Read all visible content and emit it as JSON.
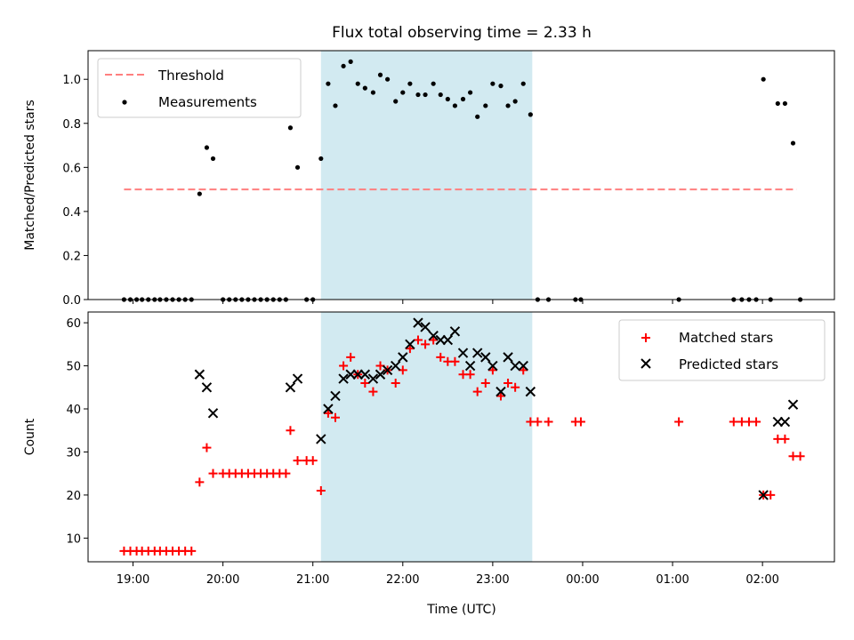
{
  "chart_data": {
    "title": "Flux total observing time = 2.33 h",
    "xlabel": "Time (UTC)",
    "x_unit": "hours (24.0 = 00:00 next day)",
    "xlim": [
      18.5,
      26.8
    ],
    "xticks": [
      {
        "value": 19,
        "label": "19:00"
      },
      {
        "value": 20,
        "label": "20:00"
      },
      {
        "value": 21,
        "label": "21:00"
      },
      {
        "value": 22,
        "label": "22:00"
      },
      {
        "value": 23,
        "label": "23:00"
      },
      {
        "value": 24,
        "label": "00:00"
      },
      {
        "value": 25,
        "label": "01:00"
      },
      {
        "value": 26,
        "label": "02:00"
      }
    ],
    "span": {
      "x0": 21.09,
      "x1": 23.44,
      "color": "#add8e6"
    },
    "colors": {
      "threshold": "#ff7f7f",
      "measurements": "#000000",
      "matched": "#ff0000",
      "predicted": "#000000"
    },
    "panels": [
      {
        "type": "scatter",
        "ylabel": "Matched/Predicted stars",
        "ylim": [
          0,
          1.13
        ],
        "yticks": [
          0.0,
          0.2,
          0.4,
          0.6,
          0.8,
          1.0
        ],
        "ytick_labels": [
          "0.0",
          "0.2",
          "0.4",
          "0.6",
          "0.8",
          "1.0"
        ],
        "legend": {
          "position": "upper-left",
          "threshold_label": "Threshold",
          "measurements_label": "Measurements"
        },
        "threshold": {
          "value": 0.5,
          "x0": 18.9,
          "x1": 26.38
        },
        "measurements": [
          [
            18.9,
            0
          ],
          [
            18.97,
            0
          ],
          [
            19.04,
            0
          ],
          [
            19.1,
            0
          ],
          [
            19.17,
            0
          ],
          [
            19.24,
            0
          ],
          [
            19.3,
            0
          ],
          [
            19.37,
            0
          ],
          [
            19.44,
            0
          ],
          [
            19.51,
            0
          ],
          [
            19.58,
            0
          ],
          [
            19.65,
            0
          ],
          [
            19.74,
            0.48
          ],
          [
            19.82,
            0.69
          ],
          [
            19.89,
            0.64
          ],
          [
            20.0,
            0
          ],
          [
            20.07,
            0
          ],
          [
            20.14,
            0
          ],
          [
            20.21,
            0
          ],
          [
            20.28,
            0
          ],
          [
            20.35,
            0
          ],
          [
            20.42,
            0
          ],
          [
            20.49,
            0
          ],
          [
            20.56,
            0
          ],
          [
            20.63,
            0
          ],
          [
            20.7,
            0
          ],
          [
            20.75,
            0.78
          ],
          [
            20.83,
            0.6
          ],
          [
            20.93,
            0
          ],
          [
            21.0,
            0
          ],
          [
            21.09,
            0.64
          ],
          [
            21.17,
            0.98
          ],
          [
            21.25,
            0.88
          ],
          [
            21.34,
            1.06
          ],
          [
            21.42,
            1.08
          ],
          [
            21.5,
            0.98
          ],
          [
            21.58,
            0.96
          ],
          [
            21.67,
            0.94
          ],
          [
            21.75,
            1.02
          ],
          [
            21.83,
            1.0
          ],
          [
            21.92,
            0.9
          ],
          [
            22.0,
            0.94
          ],
          [
            22.08,
            0.98
          ],
          [
            22.17,
            0.93
          ],
          [
            22.25,
            0.93
          ],
          [
            22.34,
            0.98
          ],
          [
            22.42,
            0.93
          ],
          [
            22.5,
            0.91
          ],
          [
            22.58,
            0.88
          ],
          [
            22.67,
            0.91
          ],
          [
            22.75,
            0.94
          ],
          [
            22.83,
            0.83
          ],
          [
            22.92,
            0.88
          ],
          [
            23.0,
            0.98
          ],
          [
            23.09,
            0.97
          ],
          [
            23.17,
            0.88
          ],
          [
            23.25,
            0.9
          ],
          [
            23.34,
            0.98
          ],
          [
            23.42,
            0.84
          ],
          [
            23.5,
            0
          ],
          [
            23.62,
            0
          ],
          [
            23.92,
            0
          ],
          [
            23.98,
            0
          ],
          [
            25.07,
            0
          ],
          [
            25.68,
            0
          ],
          [
            25.77,
            0
          ],
          [
            25.85,
            0
          ],
          [
            25.93,
            0
          ],
          [
            26.01,
            1.0
          ],
          [
            26.09,
            0
          ],
          [
            26.17,
            0.89
          ],
          [
            26.25,
            0.89
          ],
          [
            26.34,
            0.71
          ],
          [
            26.42,
            0
          ]
        ]
      },
      {
        "type": "scatter",
        "ylabel": "Count",
        "ylim": [
          4.5,
          62.5
        ],
        "yticks": [
          10,
          20,
          30,
          40,
          50,
          60
        ],
        "ytick_labels": [
          "10",
          "20",
          "30",
          "40",
          "50",
          "60"
        ],
        "legend": {
          "position": "upper-right",
          "matched_label": "Matched stars",
          "predicted_label": "Predicted stars"
        },
        "matched": [
          [
            18.9,
            7
          ],
          [
            18.97,
            7
          ],
          [
            19.04,
            7
          ],
          [
            19.1,
            7
          ],
          [
            19.17,
            7
          ],
          [
            19.24,
            7
          ],
          [
            19.3,
            7
          ],
          [
            19.37,
            7
          ],
          [
            19.44,
            7
          ],
          [
            19.51,
            7
          ],
          [
            19.58,
            7
          ],
          [
            19.65,
            7
          ],
          [
            19.74,
            23
          ],
          [
            19.82,
            31
          ],
          [
            19.89,
            25
          ],
          [
            20.0,
            25
          ],
          [
            20.07,
            25
          ],
          [
            20.14,
            25
          ],
          [
            20.21,
            25
          ],
          [
            20.28,
            25
          ],
          [
            20.35,
            25
          ],
          [
            20.42,
            25
          ],
          [
            20.49,
            25
          ],
          [
            20.56,
            25
          ],
          [
            20.63,
            25
          ],
          [
            20.7,
            25
          ],
          [
            20.75,
            35
          ],
          [
            20.83,
            28
          ],
          [
            20.93,
            28
          ],
          [
            21.0,
            28
          ],
          [
            21.09,
            21
          ],
          [
            21.17,
            39
          ],
          [
            21.25,
            38
          ],
          [
            21.34,
            50
          ],
          [
            21.42,
            52
          ],
          [
            21.5,
            48
          ],
          [
            21.58,
            46
          ],
          [
            21.67,
            44
          ],
          [
            21.75,
            50
          ],
          [
            21.83,
            49
          ],
          [
            21.92,
            46
          ],
          [
            22.0,
            49
          ],
          [
            22.08,
            54
          ],
          [
            22.17,
            56
          ],
          [
            22.25,
            55
          ],
          [
            22.34,
            56
          ],
          [
            22.42,
            52
          ],
          [
            22.5,
            51
          ],
          [
            22.58,
            51
          ],
          [
            22.67,
            48
          ],
          [
            22.75,
            48
          ],
          [
            22.83,
            44
          ],
          [
            22.92,
            46
          ],
          [
            23.0,
            49
          ],
          [
            23.09,
            43
          ],
          [
            23.17,
            46
          ],
          [
            23.25,
            45
          ],
          [
            23.34,
            49
          ],
          [
            23.42,
            37
          ],
          [
            23.5,
            37
          ],
          [
            23.62,
            37
          ],
          [
            23.92,
            37
          ],
          [
            23.98,
            37
          ],
          [
            25.07,
            37
          ],
          [
            25.68,
            37
          ],
          [
            25.77,
            37
          ],
          [
            25.85,
            37
          ],
          [
            25.93,
            37
          ],
          [
            26.01,
            20
          ],
          [
            26.09,
            20
          ],
          [
            26.17,
            33
          ],
          [
            26.25,
            33
          ],
          [
            26.34,
            29
          ],
          [
            26.42,
            29
          ]
        ],
        "predicted": [
          [
            19.74,
            48
          ],
          [
            19.82,
            45
          ],
          [
            19.89,
            39
          ],
          [
            20.75,
            45
          ],
          [
            20.83,
            47
          ],
          [
            21.09,
            33
          ],
          [
            21.17,
            40
          ],
          [
            21.25,
            43
          ],
          [
            21.34,
            47
          ],
          [
            21.42,
            48
          ],
          [
            21.5,
            48
          ],
          [
            21.58,
            48
          ],
          [
            21.67,
            47
          ],
          [
            21.75,
            48
          ],
          [
            21.83,
            49
          ],
          [
            21.92,
            50
          ],
          [
            22.0,
            52
          ],
          [
            22.08,
            55
          ],
          [
            22.17,
            60
          ],
          [
            22.25,
            59
          ],
          [
            22.34,
            57
          ],
          [
            22.42,
            56
          ],
          [
            22.5,
            56
          ],
          [
            22.58,
            58
          ],
          [
            22.67,
            53
          ],
          [
            22.75,
            50
          ],
          [
            22.83,
            53
          ],
          [
            22.92,
            52
          ],
          [
            23.0,
            50
          ],
          [
            23.09,
            44
          ],
          [
            23.17,
            52
          ],
          [
            23.25,
            50
          ],
          [
            23.34,
            50
          ],
          [
            23.42,
            44
          ],
          [
            26.01,
            20
          ],
          [
            26.17,
            37
          ],
          [
            26.25,
            37
          ],
          [
            26.34,
            41
          ]
        ]
      }
    ]
  }
}
